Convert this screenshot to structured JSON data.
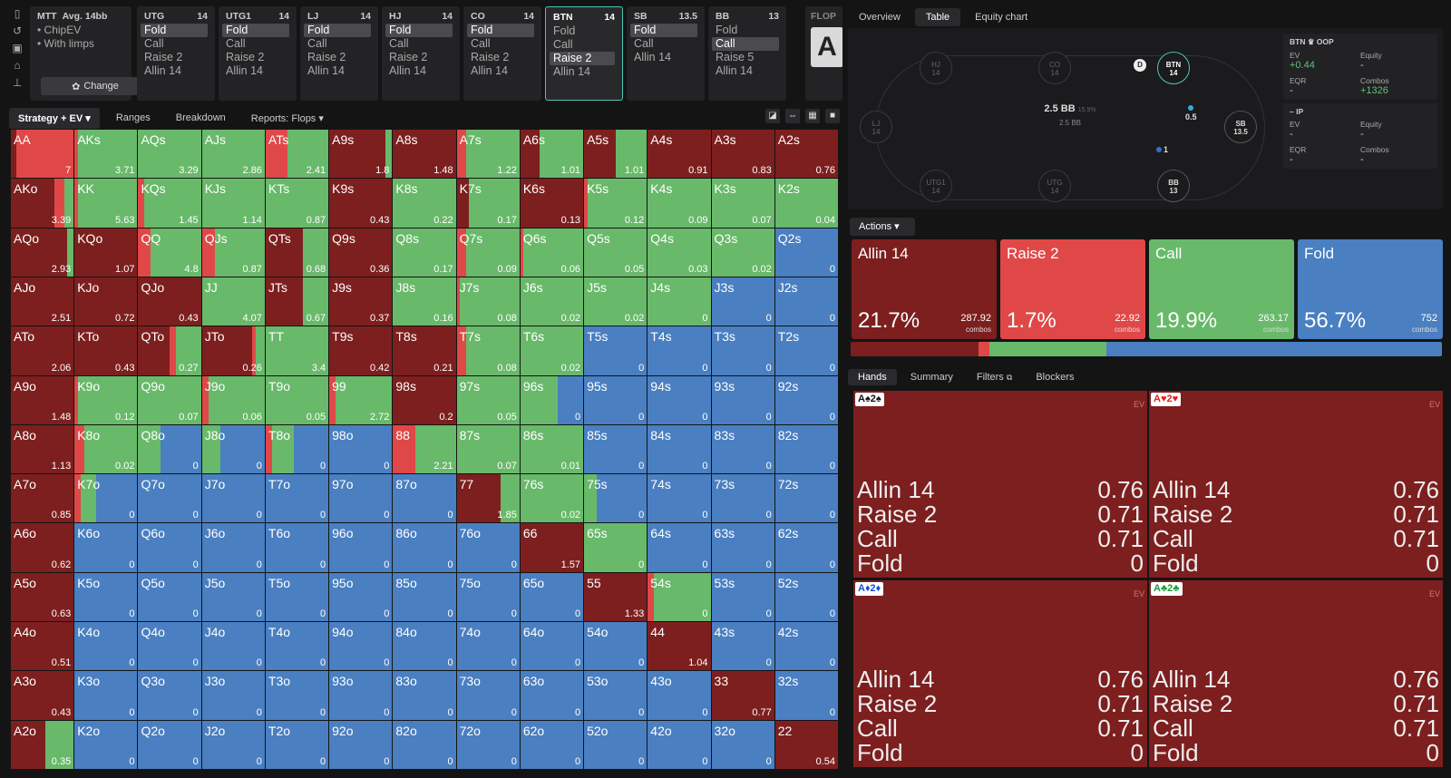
{
  "colors": {
    "raise_dark": "#7d1f1f",
    "raise": "#e04848",
    "call": "#68b96a",
    "fold": "#4a7fc1",
    "hero": "#4bc7b0"
  },
  "rail_icons": [
    "bookmark-icon",
    "history-icon",
    "save-icon",
    "table-icon",
    "align-icon"
  ],
  "mtt": {
    "title": "MTT",
    "subtitle": "Avg. 14bb",
    "options": [
      "ChipEV",
      "With limps"
    ],
    "change_label": "Change"
  },
  "positions": [
    {
      "name": "UTG",
      "stack": "14",
      "actions": [
        "Fold",
        "Call",
        "Raise 2",
        "Allin 14"
      ],
      "selected": 0
    },
    {
      "name": "UTG1",
      "stack": "14",
      "actions": [
        "Fold",
        "Call",
        "Raise 2",
        "Allin 14"
      ],
      "selected": 0
    },
    {
      "name": "LJ",
      "stack": "14",
      "actions": [
        "Fold",
        "Call",
        "Raise 2",
        "Allin 14"
      ],
      "selected": 0
    },
    {
      "name": "HJ",
      "stack": "14",
      "actions": [
        "Fold",
        "Call",
        "Raise 2",
        "Allin 14"
      ],
      "selected": 0
    },
    {
      "name": "CO",
      "stack": "14",
      "actions": [
        "Fold",
        "Call",
        "Raise 2",
        "Allin 14"
      ],
      "selected": 0
    },
    {
      "name": "BTN",
      "stack": "14",
      "actions": [
        "Fold",
        "Call",
        "Raise 2",
        "Allin 14"
      ],
      "selected": 2,
      "active": true
    },
    {
      "name": "SB",
      "stack": "13.5",
      "actions": [
        "Fold",
        "Call",
        "Allin 14"
      ],
      "selected": 0
    },
    {
      "name": "BB",
      "stack": "13",
      "actions": [
        "Fold",
        "Call",
        "Raise 5",
        "Allin 14"
      ],
      "selected": 1
    }
  ],
  "flop": {
    "label": "FLOP",
    "card": "A"
  },
  "grid_tabs": [
    "Strategy + EV",
    "Ranges",
    "Breakdown",
    "Reports: Flops"
  ],
  "view_icons": [
    "contrast-icon",
    "expand-icon",
    "grid-icon",
    "square-icon"
  ],
  "hands": [
    [
      "AA",
      "7",
      "AKs",
      "3.71",
      "AQs",
      "3.29",
      "AJs",
      "2.86",
      "ATs",
      "2.41",
      "A9s",
      "1.8",
      "A8s",
      "1.48",
      "A7s",
      "1.22",
      "A6s",
      "1.01",
      "A5s",
      "1.01",
      "A4s",
      "0.91",
      "A3s",
      "0.83",
      "A2s",
      "0.76"
    ],
    [
      "AKo",
      "3.39",
      "KK",
      "5.63",
      "KQs",
      "1.45",
      "KJs",
      "1.14",
      "KTs",
      "0.87",
      "K9s",
      "0.43",
      "K8s",
      "0.22",
      "K7s",
      "0.17",
      "K6s",
      "0.13",
      "K5s",
      "0.12",
      "K4s",
      "0.09",
      "K3s",
      "0.07",
      "K2s",
      "0.04"
    ],
    [
      "AQo",
      "2.93",
      "KQo",
      "1.07",
      "QQ",
      "4.8",
      "QJs",
      "0.87",
      "QTs",
      "0.68",
      "Q9s",
      "0.36",
      "Q8s",
      "0.17",
      "Q7s",
      "0.09",
      "Q6s",
      "0.06",
      "Q5s",
      "0.05",
      "Q4s",
      "0.03",
      "Q3s",
      "0.02",
      "Q2s",
      "0"
    ],
    [
      "AJo",
      "2.51",
      "KJo",
      "0.72",
      "QJo",
      "0.43",
      "JJ",
      "4.07",
      "JTs",
      "0.67",
      "J9s",
      "0.37",
      "J8s",
      "0.16",
      "J7s",
      "0.08",
      "J6s",
      "0.02",
      "J5s",
      "0.02",
      "J4s",
      "0",
      "J3s",
      "0",
      "J2s",
      "0"
    ],
    [
      "ATo",
      "2.06",
      "KTo",
      "0.43",
      "QTo",
      "0.27",
      "JTo",
      "0.26",
      "TT",
      "3.4",
      "T9s",
      "0.42",
      "T8s",
      "0.21",
      "T7s",
      "0.08",
      "T6s",
      "0.02",
      "T5s",
      "0",
      "T4s",
      "0",
      "T3s",
      "0",
      "T2s",
      "0"
    ],
    [
      "A9o",
      "1.48",
      "K9o",
      "0.12",
      "Q9o",
      "0.07",
      "J9o",
      "0.06",
      "T9o",
      "0.05",
      "99",
      "2.72",
      "98s",
      "0.2",
      "97s",
      "0.05",
      "96s",
      "0",
      "95s",
      "0",
      "94s",
      "0",
      "93s",
      "0",
      "92s",
      "0"
    ],
    [
      "A8o",
      "1.13",
      "K8o",
      "0.02",
      "Q8o",
      "0",
      "J8o",
      "0",
      "T8o",
      "0",
      "98o",
      "0",
      "88",
      "2.21",
      "87s",
      "0.07",
      "86s",
      "0.01",
      "85s",
      "0",
      "84s",
      "0",
      "83s",
      "0",
      "82s",
      "0"
    ],
    [
      "A7o",
      "0.85",
      "K7o",
      "0",
      "Q7o",
      "0",
      "J7o",
      "0",
      "T7o",
      "0",
      "97o",
      "0",
      "87o",
      "0",
      "77",
      "1.85",
      "76s",
      "0.02",
      "75s",
      "0",
      "74s",
      "0",
      "73s",
      "0",
      "72s",
      "0"
    ],
    [
      "A6o",
      "0.62",
      "K6o",
      "0",
      "Q6o",
      "0",
      "J6o",
      "0",
      "T6o",
      "0",
      "96o",
      "0",
      "86o",
      "0",
      "76o",
      "0",
      "66",
      "1.57",
      "65s",
      "0",
      "64s",
      "0",
      "63s",
      "0",
      "62s",
      "0"
    ],
    [
      "A5o",
      "0.63",
      "K5o",
      "0",
      "Q5o",
      "0",
      "J5o",
      "0",
      "T5o",
      "0",
      "95o",
      "0",
      "85o",
      "0",
      "75o",
      "0",
      "65o",
      "0",
      "55",
      "1.33",
      "54s",
      "0",
      "53s",
      "0",
      "52s",
      "0"
    ],
    [
      "A4o",
      "0.51",
      "K4o",
      "0",
      "Q4o",
      "0",
      "J4o",
      "0",
      "T4o",
      "0",
      "94o",
      "0",
      "84o",
      "0",
      "74o",
      "0",
      "64o",
      "0",
      "54o",
      "0",
      "44",
      "1.04",
      "43s",
      "0",
      "42s",
      "0"
    ],
    [
      "A3o",
      "0.43",
      "K3o",
      "0",
      "Q3o",
      "0",
      "J3o",
      "0",
      "T3o",
      "0",
      "93o",
      "0",
      "83o",
      "0",
      "73o",
      "0",
      "63o",
      "0",
      "53o",
      "0",
      "43o",
      "0",
      "33",
      "0.77",
      "32s",
      "0"
    ],
    [
      "A2o",
      "0.35",
      "K2o",
      "0",
      "Q2o",
      "0",
      "J2o",
      "0",
      "T2o",
      "0",
      "92o",
      "0",
      "82o",
      "0",
      "72o",
      "0",
      "62o",
      "0",
      "52o",
      "0",
      "42o",
      "0",
      "32o",
      "0",
      "22",
      "0.54"
    ]
  ],
  "right_tabs": [
    "Overview",
    "Table",
    "Equity chart"
  ],
  "table": {
    "seats": [
      {
        "name": "HJ",
        "stack": "14"
      },
      {
        "name": "CO",
        "stack": "14"
      },
      {
        "name": "BTN",
        "stack": "14"
      },
      {
        "name": "LJ",
        "stack": "14"
      },
      {
        "name": "SB",
        "stack": "13.5"
      },
      {
        "name": "UTG1",
        "stack": "14"
      },
      {
        "name": "UTG",
        "stack": "14"
      },
      {
        "name": "BB",
        "stack": "13"
      }
    ],
    "dealer": "D",
    "pot": "2.5 BB",
    "pot_pct": "15.9%",
    "pot_sub": "2.5 BB",
    "sb_bet": "0.5",
    "bb_bet": "1"
  },
  "oop": {
    "header": "BTN ♛ OOP",
    "ev_label": "EV",
    "ev": "+0.44",
    "equity_label": "Equity",
    "equity": "-",
    "eqr_label": "EQR",
    "eqr": "-",
    "combos_label": "Combos",
    "combos": "+1326"
  },
  "ip": {
    "header": "IP",
    "ev_label": "EV",
    "ev": "-",
    "equity_label": "Equity",
    "equity": "-",
    "eqr_label": "EQR",
    "eqr": "-",
    "combos_label": "Combos",
    "combos": "-"
  },
  "actions_label": "Actions",
  "action_boxes": [
    {
      "name": "Allin 14",
      "pct": "21.7%",
      "combos": "287.92",
      "freq": 0.217
    },
    {
      "name": "Raise 2",
      "pct": "1.7%",
      "combos": "22.92",
      "freq": 0.017
    },
    {
      "name": "Call",
      "pct": "19.9%",
      "combos": "263.17",
      "freq": 0.199
    },
    {
      "name": "Fold",
      "pct": "56.7%",
      "combos": "752",
      "freq": 0.567
    }
  ],
  "combos_word": "combos",
  "hand_tabs": [
    "Hands",
    "Summary",
    "Filters",
    "Blockers"
  ],
  "combo_cards": [
    {
      "label": "A♠2♠",
      "suitcolor": "#111"
    },
    {
      "label": "A♥2♥",
      "suitcolor": "#d22"
    },
    {
      "label": "A♦2♦",
      "suitcolor": "#1a4fd0"
    },
    {
      "label": "A♣2♣",
      "suitcolor": "#1a9a3a"
    }
  ],
  "combo_ev_label": "EV",
  "combo_rows": [
    [
      "Allin 14",
      "0.76"
    ],
    [
      "Raise 2",
      "0.71"
    ],
    [
      "Call",
      "0.71"
    ],
    [
      "Fold",
      "0"
    ]
  ]
}
